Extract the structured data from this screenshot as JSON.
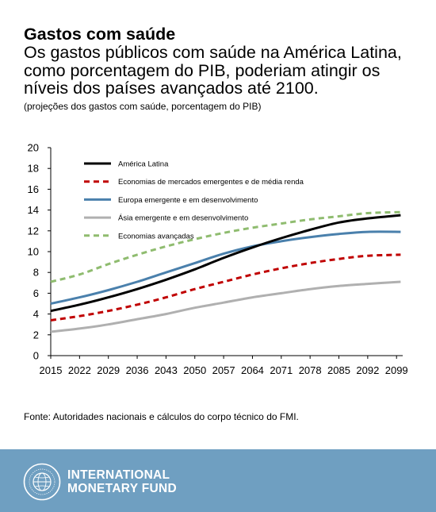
{
  "header": {
    "title": "Gastos com saúde",
    "subtitle": "Os gastos públicos com saúde na América Latina, como porcentagem do PIB, poderiam atingir os níveis dos países avançados até 2100.",
    "note": "(projeções dos gastos com saúde, porcentagem do PIB)"
  },
  "source": "Fonte: Autoridades nacionais e cálculos do corpo técnico do FMI.",
  "footer": {
    "org_line1": "INTERNATIONAL",
    "org_line2": "MONETARY FUND",
    "seal_icon": "imf-seal-icon",
    "background": "#6f9fc1"
  },
  "chart_data": {
    "type": "line",
    "title": "",
    "xlabel": "",
    "ylabel": "",
    "xlim": [
      2015,
      2100
    ],
    "ylim": [
      0,
      20
    ],
    "yticks": [
      0,
      2,
      4,
      6,
      8,
      10,
      12,
      14,
      16,
      18,
      20
    ],
    "xticks": [
      2015,
      2022,
      2029,
      2036,
      2043,
      2050,
      2057,
      2064,
      2071,
      2078,
      2085,
      2092,
      2099
    ],
    "grid": false,
    "legend": "top-left",
    "series": [
      {
        "name": "América Latina",
        "color": "#000000",
        "dash": "solid",
        "x": [
          2015,
          2022,
          2029,
          2036,
          2043,
          2050,
          2057,
          2064,
          2071,
          2078,
          2085,
          2092,
          2100
        ],
        "y": [
          4.3,
          4.9,
          5.6,
          6.4,
          7.3,
          8.3,
          9.4,
          10.4,
          11.3,
          12.1,
          12.8,
          13.2,
          13.5
        ]
      },
      {
        "name": "Economias de mercados emergentes e de média renda",
        "color": "#c00000",
        "dash": "dash",
        "x": [
          2015,
          2022,
          2029,
          2036,
          2043,
          2050,
          2057,
          2064,
          2071,
          2078,
          2085,
          2092,
          2100
        ],
        "y": [
          3.4,
          3.8,
          4.3,
          4.9,
          5.6,
          6.4,
          7.1,
          7.8,
          8.4,
          8.9,
          9.3,
          9.6,
          9.7
        ]
      },
      {
        "name": "Europa emergente e em desenvolvimento",
        "color": "#4a80ac",
        "dash": "solid",
        "x": [
          2015,
          2022,
          2029,
          2036,
          2043,
          2050,
          2057,
          2064,
          2071,
          2078,
          2085,
          2092,
          2100
        ],
        "y": [
          5.0,
          5.6,
          6.3,
          7.1,
          8.0,
          8.9,
          9.8,
          10.5,
          11.0,
          11.4,
          11.7,
          11.9,
          11.9
        ]
      },
      {
        "name": "Ásia emergente e em desenvolvimento",
        "color": "#b0b0b0",
        "dash": "solid",
        "x": [
          2015,
          2022,
          2029,
          2036,
          2043,
          2050,
          2057,
          2064,
          2071,
          2078,
          2085,
          2092,
          2100
        ],
        "y": [
          2.3,
          2.6,
          3.0,
          3.5,
          4.0,
          4.6,
          5.1,
          5.6,
          6.0,
          6.4,
          6.7,
          6.9,
          7.1
        ]
      },
      {
        "name": "Economias avançadas",
        "color": "#8fbc6f",
        "dash": "dash",
        "x": [
          2015,
          2022,
          2029,
          2036,
          2043,
          2050,
          2057,
          2064,
          2071,
          2078,
          2085,
          2092,
          2100
        ],
        "y": [
          7.1,
          7.8,
          8.8,
          9.7,
          10.5,
          11.2,
          11.8,
          12.3,
          12.7,
          13.1,
          13.4,
          13.7,
          13.8
        ]
      }
    ]
  }
}
